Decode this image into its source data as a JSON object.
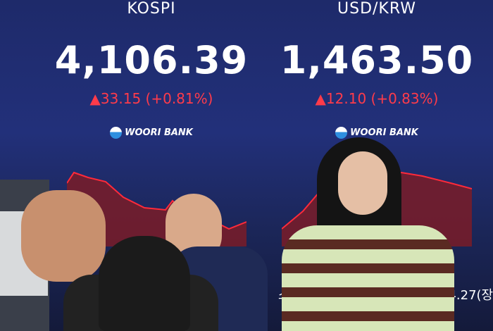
{
  "kospi": {
    "label": "KOSPI",
    "value": "4,106.39",
    "change": "▲33.15 (+0.81%)",
    "logo": "WOORI BANK"
  },
  "usdkrw": {
    "label": "USD/KRW",
    "value": "1,463.50",
    "change": "▲12.10 (+0.83%)",
    "logo": "WOORI BANK"
  },
  "ticker": {
    "left": "스",
    "right": "34.27(장"
  },
  "colors": {
    "screen": "#22307a",
    "up": "#ff3b4a",
    "chart_fill": "#7a1c28"
  }
}
